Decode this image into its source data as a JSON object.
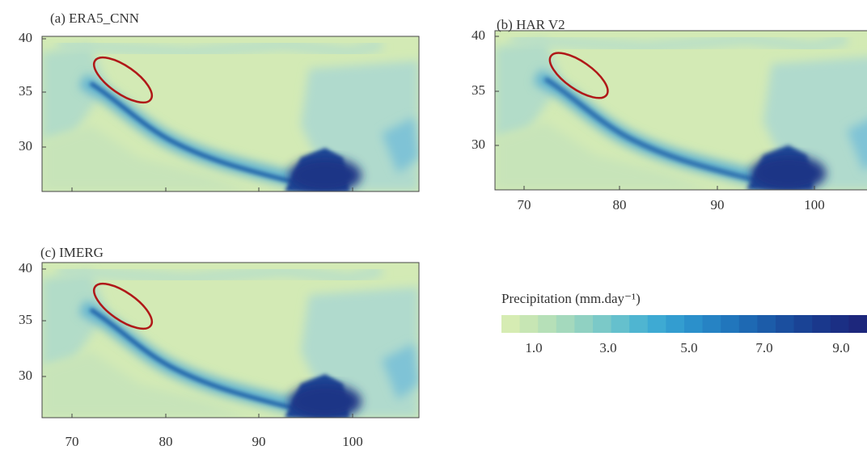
{
  "panels": [
    {
      "title": "(a) ERA5_CNN",
      "lat_ticks": [
        "40",
        "35",
        "30"
      ]
    },
    {
      "title": "(b) HAR V2",
      "lat_ticks": [
        "40",
        "35",
        "30"
      ],
      "lon_ticks": [
        "70",
        "80",
        "90",
        "100"
      ]
    },
    {
      "title": "(c) IMERG",
      "lat_ticks": [
        "40",
        "35",
        "30"
      ],
      "lon_ticks": [
        "70",
        "80",
        "90",
        "100"
      ]
    }
  ],
  "colorbar": {
    "label": "Precipitation (mm.day⁻¹)",
    "ticks": [
      "1.0",
      "3.0",
      "5.0",
      "7.0",
      "9.0"
    ]
  }
}
